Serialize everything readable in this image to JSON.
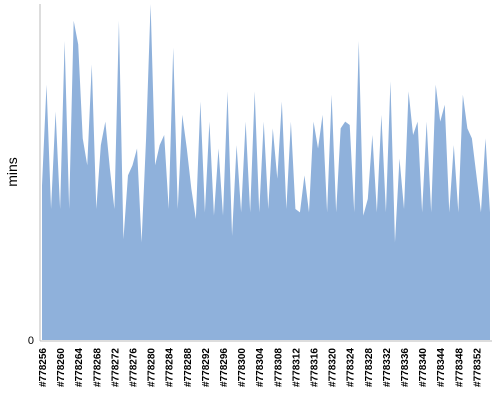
{
  "chart_data": {
    "type": "area",
    "y_label": "mins",
    "color": "#8fb1db",
    "ylim": [
      0,
      100
    ],
    "yticks": [
      0
    ],
    "categories": [
      "#778256",
      null,
      null,
      null,
      "#778260",
      null,
      null,
      null,
      "#778264",
      null,
      null,
      null,
      "#778268",
      null,
      null,
      null,
      "#778272",
      null,
      null,
      null,
      "#778276",
      null,
      null,
      null,
      "#778280",
      null,
      null,
      null,
      "#778284",
      null,
      null,
      null,
      "#778288",
      null,
      null,
      null,
      "#778292",
      null,
      null,
      null,
      "#778296",
      null,
      null,
      null,
      "#778300",
      null,
      null,
      null,
      "#778304",
      null,
      null,
      null,
      "#778308",
      null,
      null,
      null,
      "#778312",
      null,
      null,
      null,
      "#778316",
      null,
      null,
      null,
      "#778320",
      null,
      null,
      null,
      "#778324",
      null,
      null,
      null,
      "#778328",
      null,
      null,
      null,
      "#778332",
      null,
      null,
      null,
      "#778336",
      null,
      null,
      null,
      "#778340",
      null,
      null,
      null,
      "#778344",
      null,
      null,
      null,
      "#778348",
      null,
      null,
      null,
      "#778352",
      null,
      null,
      null
    ],
    "values": [
      46,
      76,
      39,
      68,
      39,
      89,
      39,
      95,
      88,
      60,
      52,
      82,
      39,
      58,
      65,
      51,
      39,
      95,
      30,
      49,
      52,
      57,
      29,
      60,
      100,
      52,
      58,
      61,
      39,
      87,
      39,
      67,
      57,
      45,
      36,
      71,
      38,
      65,
      37,
      57,
      37,
      74,
      31,
      58,
      38,
      65,
      38,
      74,
      38,
      65,
      39,
      63,
      48,
      71,
      39,
      65,
      39,
      38,
      49,
      38,
      65,
      57,
      67,
      38,
      73,
      38,
      63,
      65,
      64,
      38,
      89,
      37,
      42,
      61,
      38,
      67,
      38,
      77,
      29,
      54,
      39,
      74,
      61,
      65,
      38,
      65,
      38,
      76,
      65,
      70,
      38,
      58,
      38,
      73,
      63,
      60,
      49,
      38,
      60,
      38
    ]
  }
}
